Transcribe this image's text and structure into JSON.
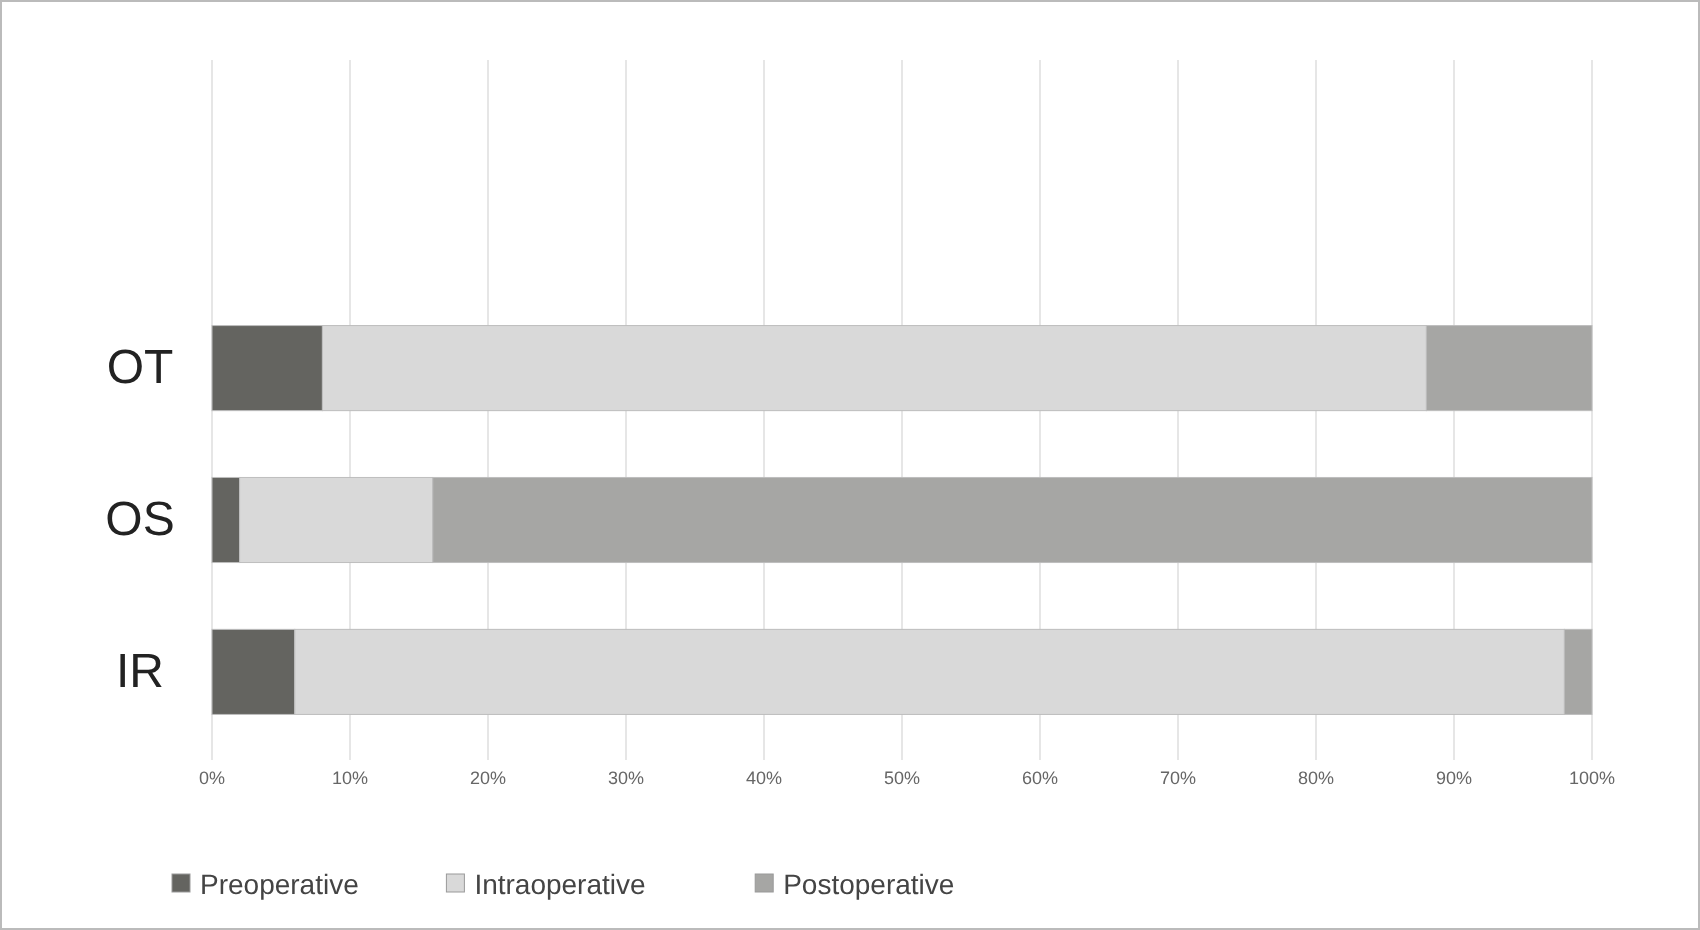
{
  "chart_data": {
    "type": "bar",
    "orientation": "horizontal",
    "stacked": true,
    "categories": [
      "OT",
      "OS",
      "IR"
    ],
    "series": [
      {
        "name": "Preoperative",
        "color": "#646460",
        "values": [
          8,
          2,
          6
        ]
      },
      {
        "name": "Intraoperative",
        "color": "#d9d9d9",
        "values": [
          80,
          14,
          92
        ]
      },
      {
        "name": "Postoperative",
        "color": "#a6a6a4",
        "values": [
          12,
          84,
          2
        ]
      }
    ],
    "xlim": [
      0,
      100
    ],
    "xticks": [
      {
        "value": 0,
        "label": "0%"
      },
      {
        "value": 10,
        "label": "10%"
      },
      {
        "value": 20,
        "label": "20%"
      },
      {
        "value": 30,
        "label": "30%"
      },
      {
        "value": 40,
        "label": "40%"
      },
      {
        "value": 50,
        "label": "50%"
      },
      {
        "value": 60,
        "label": "60%"
      },
      {
        "value": 70,
        "label": "70%"
      },
      {
        "value": 80,
        "label": "80%"
      },
      {
        "value": 90,
        "label": "90%"
      },
      {
        "value": 100,
        "label": "100%"
      }
    ],
    "grid": "x",
    "legend": "bottom left"
  }
}
